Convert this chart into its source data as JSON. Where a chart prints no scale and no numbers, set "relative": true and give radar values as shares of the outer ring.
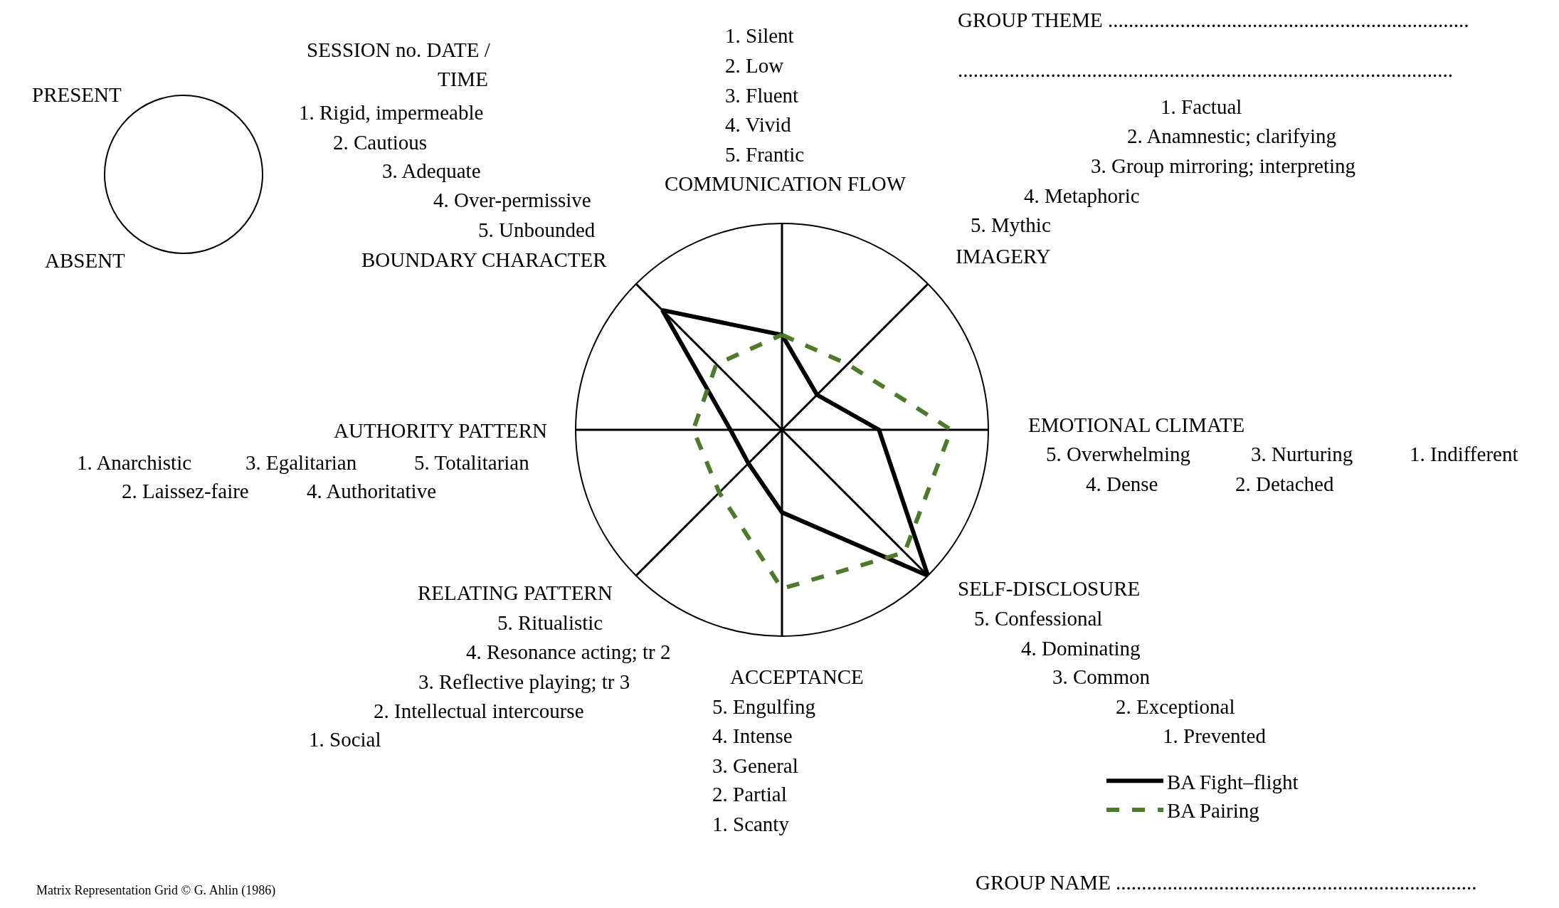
{
  "chart_data": {
    "type": "radar",
    "categories": [
      "COMMUNICATION FLOW",
      "IMAGERY",
      "EMOTIONAL CLIMATE",
      "SELF-DISCLOSURE",
      "ACCEPTANCE",
      "RELATING PATTERN",
      "AUTHORITY PATTERN",
      "BOUNDARY CHARACTER"
    ],
    "series": [
      {
        "name": "BA Fight–flight",
        "color": "#000000",
        "line_style": "solid",
        "values": [
          0.46,
          0.24,
          0.47,
          1,
          0.4,
          0.23,
          0.25,
          0.82
        ]
      },
      {
        "name": "BA Pairing",
        "color": "#4e7a2c",
        "line_style": "dashed",
        "values": [
          0.46,
          0.45,
          0.82,
          0.84,
          0.77,
          0.43,
          0.43,
          0.45
        ]
      }
    ],
    "relative": true,
    "grid": true,
    "marker": "none",
    "legend": "bottom right",
    "annotations": [
      "SESSION no. DATE /",
      "TIME",
      "PRESENT",
      "ABSENT",
      "1. Rigid, impermeable",
      "2. Cautious",
      "3. Adequate",
      "4. Over-permissive",
      "5. Unbounded",
      "1. Silent",
      "2. Low",
      "3. Fluent",
      "4. Vivid",
      "5. Frantic",
      "GROUP THEME ......................................................................",
      "................................................................................................",
      "1. Factual",
      "2. Anamnestic; clarifying",
      "3. Group mirroring; interpreting",
      "4. Metaphoric",
      "5. Mythic",
      "5. Overwhelming",
      "3. Nurturing",
      "1. Indifferent",
      "4. Dense",
      "2. Detached",
      "5. Confessional",
      "4. Dominating",
      "3. Common",
      "2. Exceptional",
      "1. Prevented",
      "5. Engulfing",
      "4. Intense",
      "3. General",
      "2. Partial",
      "1. Scanty",
      "5. Ritualistic",
      "4. Resonance acting; tr 2",
      "3. Reflective playing; tr 3",
      "2. Intellectual intercourse",
      "1. Social",
      "1. Anarchistic",
      "3. Egalitarian",
      "5. Totalitarian",
      "2. Laissez-faire",
      "4. Authoritative",
      "Matrix Representation Grid © G. Ahlin (1986)",
      "GROUP NAME ......................................................................"
    ]
  }
}
